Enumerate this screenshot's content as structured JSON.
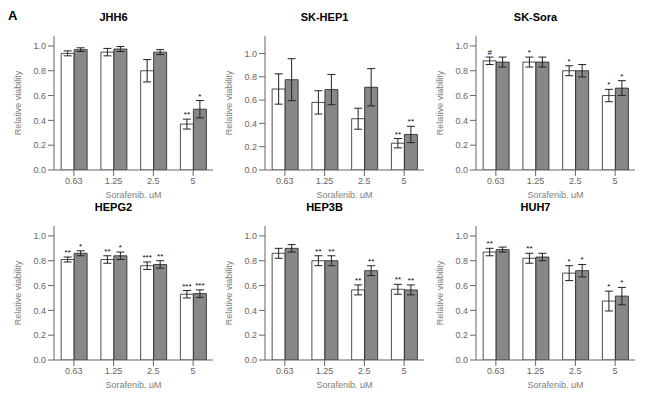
{
  "panel_label": "A",
  "chart_data": [
    {
      "type": "bar",
      "title": "JHH6",
      "x_label": "Sorafenib, μM",
      "y_label": "Relative viability",
      "categories": [
        "0.63",
        "1.25",
        "2.5",
        "5"
      ],
      "series": [
        {
          "color": "#FFFFFF",
          "values": [
            0.94,
            0.95,
            0.8,
            0.37
          ],
          "errors": [
            0.02,
            0.03,
            0.09,
            0.04
          ],
          "annotations": [
            null,
            null,
            null,
            "**"
          ]
        },
        {
          "color": "#888888",
          "values": [
            0.97,
            0.975,
            0.95,
            0.49
          ],
          "errors": [
            0.015,
            0.02,
            0.02,
            0.07
          ],
          "annotations": [
            null,
            null,
            null,
            "*"
          ]
        }
      ],
      "ylim": [
        0.0,
        1.08
      ],
      "yticks": [
        {
          "value": 0.0,
          "label": "0.0"
        },
        0.2,
        0.4,
        0.6,
        0.8,
        {
          "value": 1.0,
          "label": "1.0"
        }
      ]
    },
    {
      "type": "bar",
      "title": "SK-HEP1",
      "x_label": "Sorafenib, μM",
      "y_label": "Relative viability",
      "categories": [
        "0.63",
        "1.25",
        "2.5",
        "5"
      ],
      "series": [
        {
          "color": "#FFFFFF",
          "values": [
            0.695,
            0.58,
            0.44,
            0.23
          ],
          "errors": [
            0.13,
            0.1,
            0.09,
            0.04
          ],
          "annotations": [
            null,
            null,
            null,
            "**"
          ]
        },
        {
          "color": "#888888",
          "values": [
            0.775,
            0.69,
            0.71,
            0.305
          ],
          "errors": [
            0.18,
            0.13,
            0.16,
            0.07
          ],
          "annotations": [
            null,
            null,
            null,
            "**"
          ]
        }
      ],
      "ylim": [
        0.0,
        1.15
      ],
      "yticks": [
        {
          "value": 0.0,
          "label": "0.0"
        },
        0.2,
        0.4,
        0.6,
        0.8,
        {
          "value": 1.0,
          "label": "1.0"
        }
      ]
    },
    {
      "type": "bar",
      "title": "SK-Sora",
      "x_label": "Sorafenib, μM",
      "y_label": "Relative viability",
      "categories": [
        "0.63",
        "1.25",
        "2.5",
        "5"
      ],
      "series": [
        {
          "color": "#FFFFFF",
          "values": [
            0.88,
            0.87,
            0.8,
            0.6
          ],
          "errors": [
            0.03,
            0.04,
            0.04,
            0.05
          ],
          "annotations": [
            "#",
            "*",
            "*",
            "*"
          ]
        },
        {
          "color": "#888888",
          "values": [
            0.87,
            0.87,
            0.8,
            0.66
          ],
          "errors": [
            0.04,
            0.04,
            0.05,
            0.06
          ],
          "annotations": [
            null,
            null,
            null,
            "*"
          ]
        }
      ],
      "ylim": [
        0.0,
        1.08
      ],
      "yticks": [
        {
          "value": 0.0,
          "label": "0.0"
        },
        0.2,
        0.4,
        0.6,
        0.8,
        {
          "value": 1.0,
          "label": "1.0"
        }
      ]
    },
    {
      "type": "bar",
      "title": "HEPG2",
      "x_label": "Sorafenib, μM",
      "y_label": "Relative viability",
      "categories": [
        "0.63",
        "1.25",
        "2.5",
        "5"
      ],
      "series": [
        {
          "color": "#FFFFFF",
          "values": [
            0.81,
            0.81,
            0.76,
            0.53
          ],
          "errors": [
            0.02,
            0.03,
            0.03,
            0.03
          ],
          "annotations": [
            "**",
            "**",
            "***",
            "***"
          ]
        },
        {
          "color": "#888888",
          "values": [
            0.86,
            0.84,
            0.77,
            0.535
          ],
          "errors": [
            0.02,
            0.03,
            0.03,
            0.03
          ],
          "annotations": [
            "*",
            "*",
            "**",
            "***"
          ]
        }
      ],
      "ylim": [
        0.0,
        1.08
      ],
      "yticks": [
        {
          "value": 0.0,
          "label": "0.0"
        },
        0.2,
        0.4,
        0.6,
        0.8,
        {
          "value": 1.0,
          "label": "1.0"
        }
      ]
    },
    {
      "type": "bar",
      "title": "HEP3B",
      "x_label": "Sorafenib, μM",
      "y_label": "Relative viability",
      "categories": [
        "0.63",
        "1.25",
        "2.5",
        "5"
      ],
      "series": [
        {
          "color": "#FFFFFF",
          "values": [
            0.86,
            0.8,
            0.565,
            0.57
          ],
          "errors": [
            0.04,
            0.04,
            0.04,
            0.04
          ],
          "annotations": [
            null,
            "**",
            "**",
            "**"
          ]
        },
        {
          "color": "#888888",
          "values": [
            0.9,
            0.8,
            0.72,
            0.565
          ],
          "errors": [
            0.03,
            0.04,
            0.04,
            0.04
          ],
          "annotations": [
            null,
            "**",
            "**",
            "**"
          ]
        }
      ],
      "ylim": [
        0.0,
        1.08
      ],
      "yticks": [
        {
          "value": 0.0,
          "label": "0.0"
        },
        0.2,
        0.4,
        0.6,
        0.8,
        {
          "value": 1.0,
          "label": "1.0"
        }
      ]
    },
    {
      "type": "bar",
      "title": "HUH7",
      "x_label": "Sorafenib, μM",
      "y_label": "Relative viability",
      "categories": [
        "0.63",
        "1.25",
        "2.5",
        "5"
      ],
      "series": [
        {
          "color": "#FFFFFF",
          "values": [
            0.87,
            0.82,
            0.7,
            0.475
          ],
          "errors": [
            0.03,
            0.04,
            0.06,
            0.08
          ],
          "annotations": [
            "**",
            "**",
            "*",
            "*"
          ]
        },
        {
          "color": "#888888",
          "values": [
            0.89,
            0.83,
            0.72,
            0.515
          ],
          "errors": [
            0.02,
            0.03,
            0.05,
            0.07
          ],
          "annotations": [
            null,
            null,
            "*",
            "*"
          ]
        }
      ],
      "ylim": [
        0.0,
        1.08
      ],
      "yticks": [
        {
          "value": 0.0,
          "label": "0.0"
        },
        0.2,
        0.4,
        0.6,
        0.8,
        {
          "value": 1.0,
          "label": "1.0"
        }
      ]
    }
  ]
}
